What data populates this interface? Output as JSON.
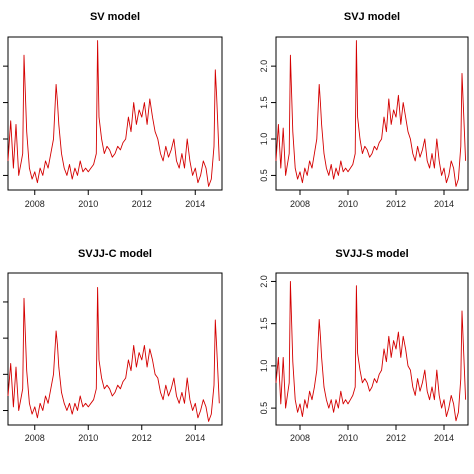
{
  "chart_data": [
    {
      "type": "line",
      "title": "SV model",
      "xlabel": "",
      "ylabel": "",
      "xlim": [
        2007.0,
        2015.0
      ],
      "ylim": [
        0.3,
        2.4
      ],
      "x_ticks": [
        2008,
        2010,
        2012,
        2014
      ],
      "y_ticks": [
        0.5,
        1.0,
        1.5,
        2.0
      ],
      "y_tick_labels_visible": false,
      "color": "#d40000",
      "series": [
        {
          "x": [
            2007.0,
            2007.1,
            2007.2,
            2007.3,
            2007.4,
            2007.5,
            2007.55,
            2007.6,
            2007.7,
            2007.8,
            2007.9,
            2008.0,
            2008.1,
            2008.2,
            2008.3,
            2008.4,
            2008.5,
            2008.6,
            2008.7,
            2008.8,
            2008.85,
            2008.9,
            2009.0,
            2009.1,
            2009.2,
            2009.3,
            2009.4,
            2009.5,
            2009.6,
            2009.7,
            2009.8,
            2009.9,
            2010.0,
            2010.1,
            2010.2,
            2010.3,
            2010.35,
            2010.4,
            2010.5,
            2010.6,
            2010.7,
            2010.8,
            2010.9,
            2011.0,
            2011.1,
            2011.2,
            2011.3,
            2011.4,
            2011.5,
            2011.6,
            2011.7,
            2011.8,
            2011.9,
            2012.0,
            2012.1,
            2012.2,
            2012.3,
            2012.4,
            2012.5,
            2012.6,
            2012.7,
            2012.8,
            2012.9,
            2013.0,
            2013.1,
            2013.2,
            2013.3,
            2013.4,
            2013.5,
            2013.6,
            2013.7,
            2013.8,
            2013.9,
            2014.0,
            2014.1,
            2014.2,
            2014.3,
            2014.4,
            2014.5,
            2014.6,
            2014.7,
            2014.75,
            2014.8,
            2014.9
          ],
          "values": [
            0.7,
            1.25,
            0.6,
            1.2,
            0.5,
            0.7,
            0.8,
            2.15,
            1.1,
            0.6,
            0.45,
            0.55,
            0.4,
            0.6,
            0.5,
            0.7,
            0.6,
            0.8,
            1.0,
            1.75,
            1.5,
            1.2,
            0.8,
            0.6,
            0.5,
            0.65,
            0.45,
            0.6,
            0.5,
            0.7,
            0.55,
            0.6,
            0.55,
            0.6,
            0.65,
            0.8,
            2.35,
            1.3,
            1.0,
            0.8,
            0.9,
            0.85,
            0.75,
            0.8,
            0.9,
            0.85,
            0.95,
            1.0,
            1.3,
            1.1,
            1.5,
            1.2,
            1.4,
            1.3,
            1.5,
            1.2,
            1.55,
            1.3,
            1.1,
            1.0,
            0.8,
            0.7,
            0.9,
            0.75,
            0.85,
            1.0,
            0.7,
            0.6,
            0.8,
            0.6,
            1.0,
            0.7,
            0.5,
            0.6,
            0.4,
            0.5,
            0.7,
            0.6,
            0.35,
            0.45,
            0.9,
            1.95,
            1.6,
            0.7
          ]
        }
      ]
    },
    {
      "type": "line",
      "title": "SVJ model",
      "xlabel": "",
      "ylabel": "",
      "xlim": [
        2007.0,
        2015.0
      ],
      "ylim": [
        0.3,
        2.4
      ],
      "x_ticks": [
        2008,
        2010,
        2012,
        2014
      ],
      "y_ticks": [
        0.5,
        1.0,
        1.5,
        2.0
      ],
      "y_tick_labels": [
        "0.5",
        "1.0",
        "1.5",
        "2.0"
      ],
      "y_tick_labels_visible": true,
      "color": "#d40000",
      "series": [
        {
          "x": [
            2007.0,
            2007.1,
            2007.2,
            2007.3,
            2007.4,
            2007.5,
            2007.55,
            2007.6,
            2007.7,
            2007.8,
            2007.9,
            2008.0,
            2008.1,
            2008.2,
            2008.3,
            2008.4,
            2008.5,
            2008.6,
            2008.7,
            2008.8,
            2008.85,
            2008.9,
            2009.0,
            2009.1,
            2009.2,
            2009.3,
            2009.4,
            2009.5,
            2009.6,
            2009.7,
            2009.8,
            2009.9,
            2010.0,
            2010.1,
            2010.2,
            2010.3,
            2010.35,
            2010.4,
            2010.5,
            2010.6,
            2010.7,
            2010.8,
            2010.9,
            2011.0,
            2011.1,
            2011.2,
            2011.3,
            2011.4,
            2011.5,
            2011.6,
            2011.7,
            2011.8,
            2011.9,
            2012.0,
            2012.1,
            2012.2,
            2012.3,
            2012.4,
            2012.5,
            2012.6,
            2012.7,
            2012.8,
            2012.9,
            2013.0,
            2013.1,
            2013.2,
            2013.3,
            2013.4,
            2013.5,
            2013.6,
            2013.7,
            2013.8,
            2013.9,
            2014.0,
            2014.1,
            2014.2,
            2014.3,
            2014.4,
            2014.5,
            2014.6,
            2014.7,
            2014.75,
            2014.8,
            2014.9
          ],
          "values": [
            0.7,
            1.2,
            0.6,
            1.15,
            0.5,
            0.7,
            0.8,
            2.15,
            1.1,
            0.6,
            0.45,
            0.55,
            0.4,
            0.6,
            0.5,
            0.7,
            0.6,
            0.8,
            1.0,
            1.75,
            1.5,
            1.2,
            0.8,
            0.6,
            0.5,
            0.65,
            0.45,
            0.6,
            0.5,
            0.7,
            0.55,
            0.6,
            0.55,
            0.6,
            0.65,
            0.8,
            2.35,
            1.3,
            1.0,
            0.8,
            0.9,
            0.85,
            0.75,
            0.8,
            0.9,
            0.85,
            0.95,
            1.0,
            1.3,
            1.1,
            1.55,
            1.2,
            1.4,
            1.3,
            1.6,
            1.2,
            1.5,
            1.3,
            1.1,
            1.0,
            0.8,
            0.7,
            0.9,
            0.75,
            0.85,
            1.0,
            0.7,
            0.6,
            0.8,
            0.6,
            1.0,
            0.7,
            0.5,
            0.6,
            0.4,
            0.5,
            0.7,
            0.6,
            0.35,
            0.45,
            0.9,
            1.9,
            1.5,
            0.7
          ]
        }
      ]
    },
    {
      "type": "line",
      "title": "SVJJ-C model",
      "xlabel": "",
      "ylabel": "",
      "xlim": [
        2007.0,
        2015.0
      ],
      "ylim": [
        0.3,
        2.4
      ],
      "x_ticks": [
        2008,
        2010,
        2012,
        2014
      ],
      "y_ticks": [
        0.5,
        1.0,
        1.5,
        2.0
      ],
      "y_tick_labels_visible": false,
      "color": "#d40000",
      "series": [
        {
          "x": [
            2007.0,
            2007.1,
            2007.2,
            2007.3,
            2007.4,
            2007.5,
            2007.55,
            2007.6,
            2007.7,
            2007.8,
            2007.9,
            2008.0,
            2008.1,
            2008.2,
            2008.3,
            2008.4,
            2008.5,
            2008.6,
            2008.7,
            2008.8,
            2008.85,
            2008.9,
            2009.0,
            2009.1,
            2009.2,
            2009.3,
            2009.4,
            2009.5,
            2009.6,
            2009.7,
            2009.8,
            2009.9,
            2010.0,
            2010.1,
            2010.2,
            2010.3,
            2010.35,
            2010.4,
            2010.5,
            2010.6,
            2010.7,
            2010.8,
            2010.9,
            2011.0,
            2011.1,
            2011.2,
            2011.3,
            2011.4,
            2011.5,
            2011.6,
            2011.7,
            2011.8,
            2011.9,
            2012.0,
            2012.1,
            2012.2,
            2012.3,
            2012.4,
            2012.5,
            2012.6,
            2012.7,
            2012.8,
            2012.9,
            2013.0,
            2013.1,
            2013.2,
            2013.3,
            2013.4,
            2013.5,
            2013.6,
            2013.7,
            2013.8,
            2013.9,
            2014.0,
            2014.1,
            2014.2,
            2014.3,
            2014.4,
            2014.5,
            2014.6,
            2014.7,
            2014.75,
            2014.8,
            2014.9
          ],
          "values": [
            0.7,
            1.15,
            0.55,
            1.1,
            0.5,
            0.7,
            0.8,
            2.05,
            1.05,
            0.6,
            0.45,
            0.55,
            0.4,
            0.6,
            0.5,
            0.7,
            0.6,
            0.8,
            1.0,
            1.6,
            1.4,
            1.1,
            0.75,
            0.6,
            0.5,
            0.6,
            0.45,
            0.6,
            0.5,
            0.7,
            0.55,
            0.6,
            0.55,
            0.6,
            0.65,
            0.8,
            2.2,
            1.2,
            0.95,
            0.8,
            0.85,
            0.8,
            0.7,
            0.75,
            0.85,
            0.8,
            0.9,
            0.95,
            1.2,
            1.05,
            1.4,
            1.1,
            1.3,
            1.2,
            1.4,
            1.1,
            1.35,
            1.2,
            1.0,
            0.95,
            0.75,
            0.65,
            0.85,
            0.7,
            0.8,
            0.95,
            0.7,
            0.6,
            0.75,
            0.6,
            0.95,
            0.65,
            0.5,
            0.6,
            0.4,
            0.5,
            0.65,
            0.55,
            0.35,
            0.45,
            0.85,
            1.75,
            1.4,
            0.6
          ]
        }
      ]
    },
    {
      "type": "line",
      "title": "SVJJ-S model",
      "xlabel": "",
      "ylabel": "",
      "xlim": [
        2007.0,
        2015.0
      ],
      "ylim": [
        0.3,
        2.1
      ],
      "x_ticks": [
        2008,
        2010,
        2012,
        2014
      ],
      "y_ticks": [
        0.5,
        1.0,
        1.5,
        2.0
      ],
      "y_tick_labels": [
        "0.5",
        "1.0",
        "1.5",
        "2.0"
      ],
      "y_tick_labels_visible": true,
      "color": "#d40000",
      "series": [
        {
          "x": [
            2007.0,
            2007.1,
            2007.2,
            2007.3,
            2007.4,
            2007.5,
            2007.55,
            2007.6,
            2007.7,
            2007.8,
            2007.9,
            2008.0,
            2008.1,
            2008.2,
            2008.3,
            2008.4,
            2008.5,
            2008.6,
            2008.7,
            2008.8,
            2008.85,
            2008.9,
            2009.0,
            2009.1,
            2009.2,
            2009.3,
            2009.4,
            2009.5,
            2009.6,
            2009.7,
            2009.8,
            2009.9,
            2010.0,
            2010.1,
            2010.2,
            2010.3,
            2010.35,
            2010.4,
            2010.5,
            2010.6,
            2010.7,
            2010.8,
            2010.9,
            2011.0,
            2011.1,
            2011.2,
            2011.3,
            2011.4,
            2011.5,
            2011.6,
            2011.7,
            2011.8,
            2011.9,
            2012.0,
            2012.1,
            2012.2,
            2012.3,
            2012.4,
            2012.5,
            2012.6,
            2012.7,
            2012.8,
            2012.9,
            2013.0,
            2013.1,
            2013.2,
            2013.3,
            2013.4,
            2013.5,
            2013.6,
            2013.7,
            2013.8,
            2013.9,
            2014.0,
            2014.1,
            2014.2,
            2014.3,
            2014.4,
            2014.5,
            2014.6,
            2014.7,
            2014.75,
            2014.8,
            2014.9
          ],
          "values": [
            0.8,
            1.1,
            0.55,
            1.1,
            0.5,
            0.7,
            0.8,
            2.0,
            1.05,
            0.6,
            0.45,
            0.55,
            0.4,
            0.6,
            0.5,
            0.7,
            0.6,
            0.75,
            0.95,
            1.55,
            1.35,
            1.1,
            0.75,
            0.6,
            0.5,
            0.6,
            0.45,
            0.6,
            0.5,
            0.7,
            0.55,
            0.6,
            0.55,
            0.6,
            0.65,
            0.75,
            1.95,
            1.15,
            0.95,
            0.8,
            0.85,
            0.8,
            0.7,
            0.75,
            0.85,
            0.8,
            0.9,
            0.95,
            1.2,
            1.05,
            1.35,
            1.1,
            1.3,
            1.2,
            1.4,
            1.1,
            1.35,
            1.2,
            1.0,
            0.95,
            0.75,
            0.65,
            0.85,
            0.7,
            0.8,
            0.95,
            0.7,
            0.6,
            0.75,
            0.6,
            0.95,
            0.65,
            0.5,
            0.6,
            0.4,
            0.5,
            0.65,
            0.55,
            0.35,
            0.45,
            0.85,
            1.65,
            1.3,
            0.6
          ]
        }
      ]
    }
  ]
}
